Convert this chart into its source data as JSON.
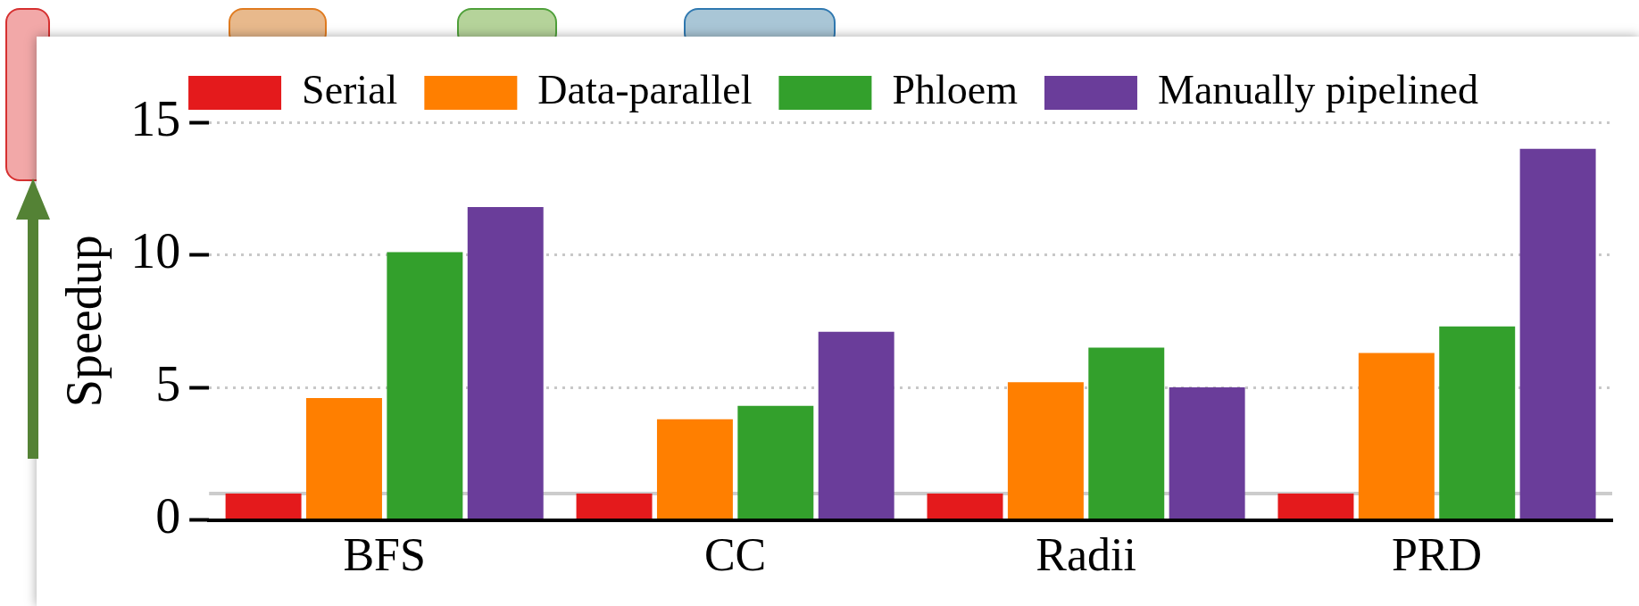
{
  "chart_data": {
    "type": "bar",
    "ylabel": "Speedup",
    "categories": [
      "BFS",
      "CC",
      "Radii",
      "PRD"
    ],
    "series": [
      {
        "name": "Serial",
        "color": "#e41a1c",
        "values": [
          1,
          1,
          1,
          1
        ]
      },
      {
        "name": "Data-parallel",
        "color": "#ff7f00",
        "values": [
          4.6,
          3.8,
          5.2,
          6.3
        ]
      },
      {
        "name": "Phloem",
        "color": "#33a02c",
        "values": [
          10.1,
          4.3,
          6.5,
          7.3
        ]
      },
      {
        "name": "Manually pipelined",
        "color": "#6a3d9a",
        "values": [
          11.8,
          7.1,
          5.0,
          14.0
        ]
      }
    ],
    "ylim": [
      0,
      15
    ],
    "yticks": [
      0,
      5,
      10,
      15
    ],
    "grid": "y",
    "legend": "top",
    "ref_lines": [
      {
        "axis": "y",
        "value": 1,
        "color": "#cccccc"
      }
    ]
  }
}
